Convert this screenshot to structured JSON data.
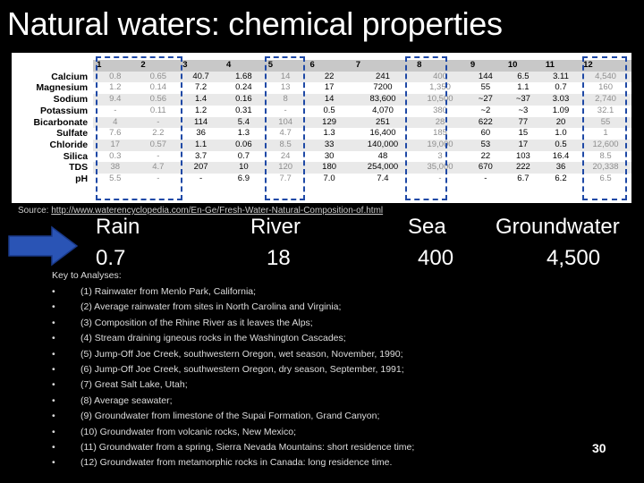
{
  "title": "Natural waters: chemical properties",
  "table": {
    "columns": [
      "1",
      "2",
      "3",
      "4",
      "5",
      "6",
      "7",
      "8",
      "9",
      "10",
      "11",
      "12"
    ],
    "rows": [
      {
        "label": "Calcium",
        "values": [
          "0.8",
          "0.65",
          "40.7",
          "1.68",
          "14",
          "22",
          "241",
          "400",
          "144",
          "6.5",
          "3.11",
          "4,540"
        ]
      },
      {
        "label": "Magnesium",
        "values": [
          "1.2",
          "0.14",
          "7.2",
          "0.24",
          "13",
          "17",
          "7200",
          "1,350",
          "55",
          "1.1",
          "0.7",
          "160"
        ]
      },
      {
        "label": "Sodium",
        "values": [
          "9.4",
          "0.56",
          "1.4",
          "0.16",
          "8",
          "14",
          "83,600",
          "10,500",
          "~27",
          "~37",
          "3.03",
          "2,740"
        ]
      },
      {
        "label": "Potassium",
        "values": [
          "-",
          "0.11",
          "1.2",
          "0.31",
          "-",
          "0.5",
          "4,070",
          "380",
          "~2",
          "~3",
          "1.09",
          "32.1"
        ]
      },
      {
        "label": "Bicarbonate",
        "values": [
          "4",
          "-",
          "114",
          "5.4",
          "104",
          "129",
          "251",
          "28",
          "622",
          "77",
          "20",
          "55"
        ]
      },
      {
        "label": "Sulfate",
        "values": [
          "7.6",
          "2.2",
          "36",
          "1.3",
          "4.7",
          "1.3",
          "16,400",
          "185",
          "60",
          "15",
          "1.0",
          "1"
        ]
      },
      {
        "label": "Chloride",
        "values": [
          "17",
          "0.57",
          "1.1",
          "0.06",
          "8.5",
          "33",
          "140,000",
          "19,000",
          "53",
          "17",
          "0.5",
          "12,600"
        ]
      },
      {
        "label": "Silica",
        "values": [
          "0.3",
          "-",
          "3.7",
          "0.7",
          "24",
          "30",
          "48",
          "3",
          "22",
          "103",
          "16.4",
          "8.5"
        ]
      },
      {
        "label": "TDS",
        "values": [
          "38",
          "4.7",
          "207",
          "10",
          "120",
          "180",
          "254,000",
          "35,000",
          "670",
          "222",
          "36",
          "20,338"
        ]
      },
      {
        "label": "pH",
        "values": [
          "5.5",
          "-",
          "-",
          "6.9",
          "7.7",
          "7.0",
          "7.4",
          "-",
          "-",
          "6.7",
          "6.2",
          "6.5"
        ]
      }
    ],
    "dim_columns": [
      0,
      1,
      4,
      7,
      11
    ]
  },
  "source": {
    "prefix": "Source: ",
    "link": "http://www.waterencyclopedia.com/En-Ge/Fresh-Water-Natural-Composition-of.html"
  },
  "categories": [
    {
      "name": "Rain",
      "value": "0.7"
    },
    {
      "name": "River",
      "value": "18"
    },
    {
      "name": "Sea",
      "value": "400"
    },
    {
      "name": "Groundwater",
      "value": "4,500"
    }
  ],
  "key": {
    "title": "Key to Analyses:",
    "items": [
      "(1) Rainwater from Menlo Park, California;",
      "(2) Average rainwater from sites in North Carolina and Virginia;",
      "(3) Composition of the Rhine River as it leaves the Alps;",
      "(4) Stream draining igneous rocks in the Washington Cascades;",
      "(5) Jump-Off Joe Creek, southwestern Oregon, wet season, November, 1990;",
      "(6) Jump-Off Joe Creek, southwestern Oregon, dry season, September, 1991;",
      "(7) Great Salt Lake, Utah;",
      "(8) Average seawater;",
      "(9) Groundwater from limestone of the Supai Formation, Grand Canyon;",
      "(10) Groundwater from volcanic rocks, New Mexico;",
      "(11) Groundwater from a spring, Sierra Nevada Mountains: short residence time;",
      "(12) Groundwater from metamorphic rocks in Canada: long residence time."
    ]
  },
  "page_number": "30",
  "colors": {
    "background": "#000000",
    "dashed_border": "#1f49a6",
    "arrow": "#2a54b5"
  }
}
